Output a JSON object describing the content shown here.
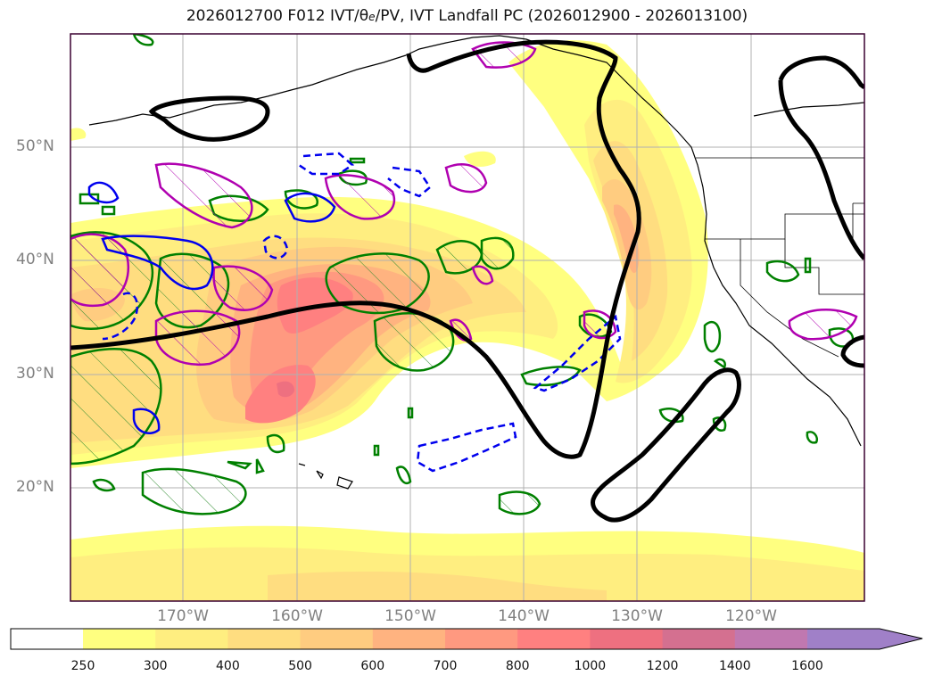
{
  "title": {
    "prefix": "2026012700 F012 IVT/",
    "theta": "θ",
    "theta_sub": "e",
    "suffix": "/PV, IVT Landfall PC (2026012900 - 2026013100)"
  },
  "map": {
    "lat_labels": [
      "50°N",
      "40°N",
      "30°N",
      "20°N"
    ],
    "lon_labels": [
      "170°W",
      "160°W",
      "150°W",
      "140°W",
      "130°W",
      "120°W"
    ]
  },
  "colorbar": {
    "ticks": [
      "250",
      "300",
      "400",
      "500",
      "600",
      "700",
      "800",
      "1000",
      "1200",
      "1400",
      "1600"
    ],
    "colors": [
      "#ffff80",
      "#ffee80",
      "#ffdd80",
      "#ffcc80",
      "#ffb380",
      "#ff9980",
      "#ff8080",
      "#ee7080",
      "#d47090",
      "#c078b0",
      "#a080c8"
    ]
  }
}
